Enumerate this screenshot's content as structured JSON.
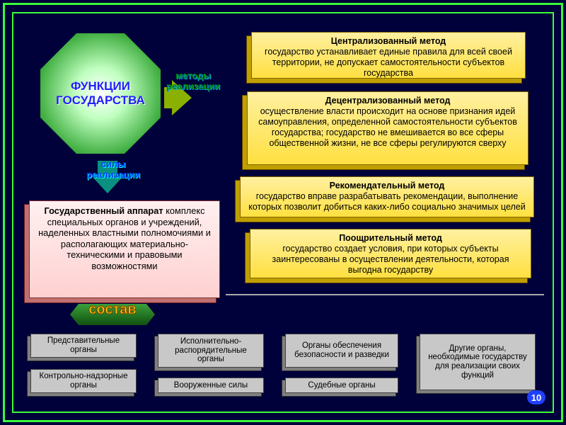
{
  "title": {
    "line1": "ФУНКЦИИ",
    "line2": "ГОСУДАРСТВА"
  },
  "arrows": {
    "methods": {
      "l1": "методы",
      "l2": "реализации"
    },
    "forces": {
      "l1": "силы",
      "l2": "реализации"
    }
  },
  "methods": {
    "centralized": {
      "title": "Централизованный метод",
      "body": "государство устанавливает единые правила для всей своей территории, не допускает самостоятельности субъектов государства"
    },
    "decentralized": {
      "title": "Децентрализованный метод",
      "body": "осуществление власти происходит на основе признания идей самоуправления, определенной самостоятельности субъектов государства; государство не вмешивается во все сферы общественной жизни, не все сферы регулируются сверху"
    },
    "recommendation": {
      "title": "Рекомендательный метод",
      "body": "государство вправе разрабатывать рекомендации, выполнение которых позволит добиться каких-либо социально значимых целей"
    },
    "incentive": {
      "title": "Поощрительный метод",
      "body": "государство создает условия, при которых субъекты заинтересованы в осуществлении деятельности, которая выгодна государству"
    }
  },
  "apparat": {
    "title": "Государственный аппарат",
    "body": "комплекс специальных органов и учреждений, наделенных властными полномочиями и располагающих материально-техническими и правовыми возможностями"
  },
  "sostav": "состав",
  "organs": {
    "g1": "Представительные органы",
    "g2": "Контрольно-надзорные органы",
    "g3": "Исполнительно-распорядительные органы",
    "g4": "Вооруженные силы",
    "g5": "Органы обеспечения безопасности и разведки",
    "g6": "Судебные органы",
    "g7": "Другие органы, необходимые государству для реализации своих функций"
  },
  "page": "10",
  "colors": {
    "bg": "#00003a",
    "frame": "#3aff3a",
    "method_bg": "#ffe040",
    "apparat_bg": "#ffd0d0",
    "gray_bg": "#c8c8c8",
    "octagon_title": "#2020ff",
    "sostav_color": "#ffcc00"
  }
}
